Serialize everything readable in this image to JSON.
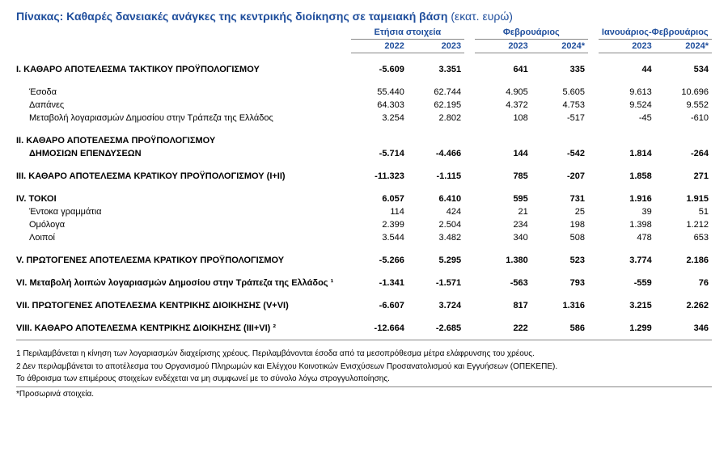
{
  "title_main": "Πίνακας: Καθαρές δανειακές ανάγκες της κεντρικής διοίκησης σε ταμειακή βάση",
  "title_unit": "(εκατ. ευρώ)",
  "colors": {
    "brand": "#1f4e9c",
    "border": "#888888",
    "text": "#000000",
    "bg": "#ffffff"
  },
  "header": {
    "groups": [
      "Ετήσια στοιχεία",
      "Φεβρουάριος",
      "Ιανουάριος-Φεβρουάριος"
    ],
    "years": [
      "2022",
      "2023",
      "2023",
      "2024*",
      "2023",
      "2024*"
    ]
  },
  "rows": [
    {
      "type": "section",
      "label": "I. ΚΑΘΑΡΟ ΑΠΟΤΕΛΕΣΜΑ  ΤΑΚΤΙΚΟΥ ΠΡΟΫΠΟΛΟΓΙΣΜΟΥ",
      "vals": [
        "-5.609",
        "3.351",
        "641",
        "335",
        "44",
        "534"
      ]
    },
    {
      "type": "spacer"
    },
    {
      "type": "sub",
      "label": "Έσοδα",
      "vals": [
        "55.440",
        "62.744",
        "4.905",
        "5.605",
        "9.613",
        "10.696"
      ]
    },
    {
      "type": "sub",
      "label": "Δαπάνες",
      "vals": [
        "64.303",
        "62.195",
        "4.372",
        "4.753",
        "9.524",
        "9.552"
      ]
    },
    {
      "type": "sub",
      "label": "Μεταβολή λογαριασμών Δημοσίου στην Τράπεζα της Ελλάδος",
      "vals": [
        "3.254",
        "2.802",
        "108",
        "-517",
        "-45",
        "-610"
      ]
    },
    {
      "type": "spacer"
    },
    {
      "type": "section2",
      "label1": "II. ΚΑΘΑΡΟ ΑΠΟΤΕΛΕΣΜΑ ΠΡΟΫΠΟΛΟΓΙΣΜΟΥ",
      "label2": "ΔΗΜΟΣΙΩΝ ΕΠΕΝΔΥΣΕΩΝ",
      "vals": [
        "-5.714",
        "-4.466",
        "144",
        "-542",
        "1.814",
        "-264"
      ]
    },
    {
      "type": "spacer"
    },
    {
      "type": "section",
      "label": "III. ΚΑΘΑΡΟ ΑΠΟΤΕΛΕΣΜΑ ΚΡΑΤΙΚΟΥ ΠΡΟΫΠΟΛΟΓΙΣΜΟΥ (I+II)",
      "vals": [
        "-11.323",
        "-1.115",
        "785",
        "-207",
        "1.858",
        "271"
      ]
    },
    {
      "type": "spacer"
    },
    {
      "type": "section",
      "label": "IV. ΤΟΚΟΙ",
      "vals": [
        "6.057",
        "6.410",
        "595",
        "731",
        "1.916",
        "1.915"
      ]
    },
    {
      "type": "sub",
      "label": "Έντοκα γραμμάτια",
      "vals": [
        "114",
        "424",
        "21",
        "25",
        "39",
        "51"
      ]
    },
    {
      "type": "sub",
      "label": "Ομόλογα",
      "vals": [
        "2.399",
        "2.504",
        "234",
        "198",
        "1.398",
        "1.212"
      ]
    },
    {
      "type": "sub",
      "label": "Λοιποί",
      "vals": [
        "3.544",
        "3.482",
        "340",
        "508",
        "478",
        "653"
      ]
    },
    {
      "type": "spacer"
    },
    {
      "type": "section",
      "label": "V. ΠΡΩΤΟΓΕΝΕΣ ΑΠΟΤΕΛΕΣΜΑ  ΚΡΑΤΙΚΟΥ ΠΡΟΫΠΟΛΟΓΙΣΜΟΥ",
      "vals": [
        "-5.266",
        "5.295",
        "1.380",
        "523",
        "3.774",
        "2.186"
      ]
    },
    {
      "type": "spacer"
    },
    {
      "type": "section",
      "label": "VI. Μεταβολή λοιπών λογαριασμών Δημοσίου στην Τράπεζα της Ελλάδος ¹",
      "vals": [
        "-1.341",
        "-1.571",
        "-563",
        "793",
        "-559",
        "76"
      ]
    },
    {
      "type": "spacer"
    },
    {
      "type": "section",
      "label": "VII. ΠΡΩΤΟΓΕΝΕΣ ΑΠΟΤΕΛΕΣΜΑ ΚΕΝΤΡΙΚΗΣ ΔΙΟΙΚΗΣΗΣ (V+VI)",
      "vals": [
        "-6.607",
        "3.724",
        "817",
        "1.316",
        "3.215",
        "2.262"
      ]
    },
    {
      "type": "spacer"
    },
    {
      "type": "section",
      "label": "VIII. ΚΑΘΑΡΟ ΑΠΟΤΕΛΕΣΜΑ ΚΕΝΤΡΙΚΗΣ ΔΙΟΙΚΗΣΗΣ (III+VI) ²",
      "vals": [
        "-12.664",
        "-2.685",
        "222",
        "586",
        "1.299",
        "346"
      ]
    }
  ],
  "footnotes": {
    "f1": "1 Περιλαμβάνεται η κίνηση των λογαριασμών διαχείρισης χρέους. Περιλαμβάνονται έσοδα από τα μεσοπρόθεσμα μέτρα ελάφρυνσης του χρέους.",
    "f2": "2 Δεν περιλαμβάνεται το αποτέλεσμα του Οργανισμού Πληρωμών και Ελέγχου Κοινοτικών Ενισχύσεων Προσανατολισμού και Εγγυήσεων (ΟΠΕΚΕΠΕ).",
    "note": "Το άθροισμα των επιμέρους στοιχείων ενδέχεται να μη συμφωνεί με το σύνολο λόγω στρογγυλοποίησης.",
    "star": "*Προσωρινά στοιχεία."
  }
}
